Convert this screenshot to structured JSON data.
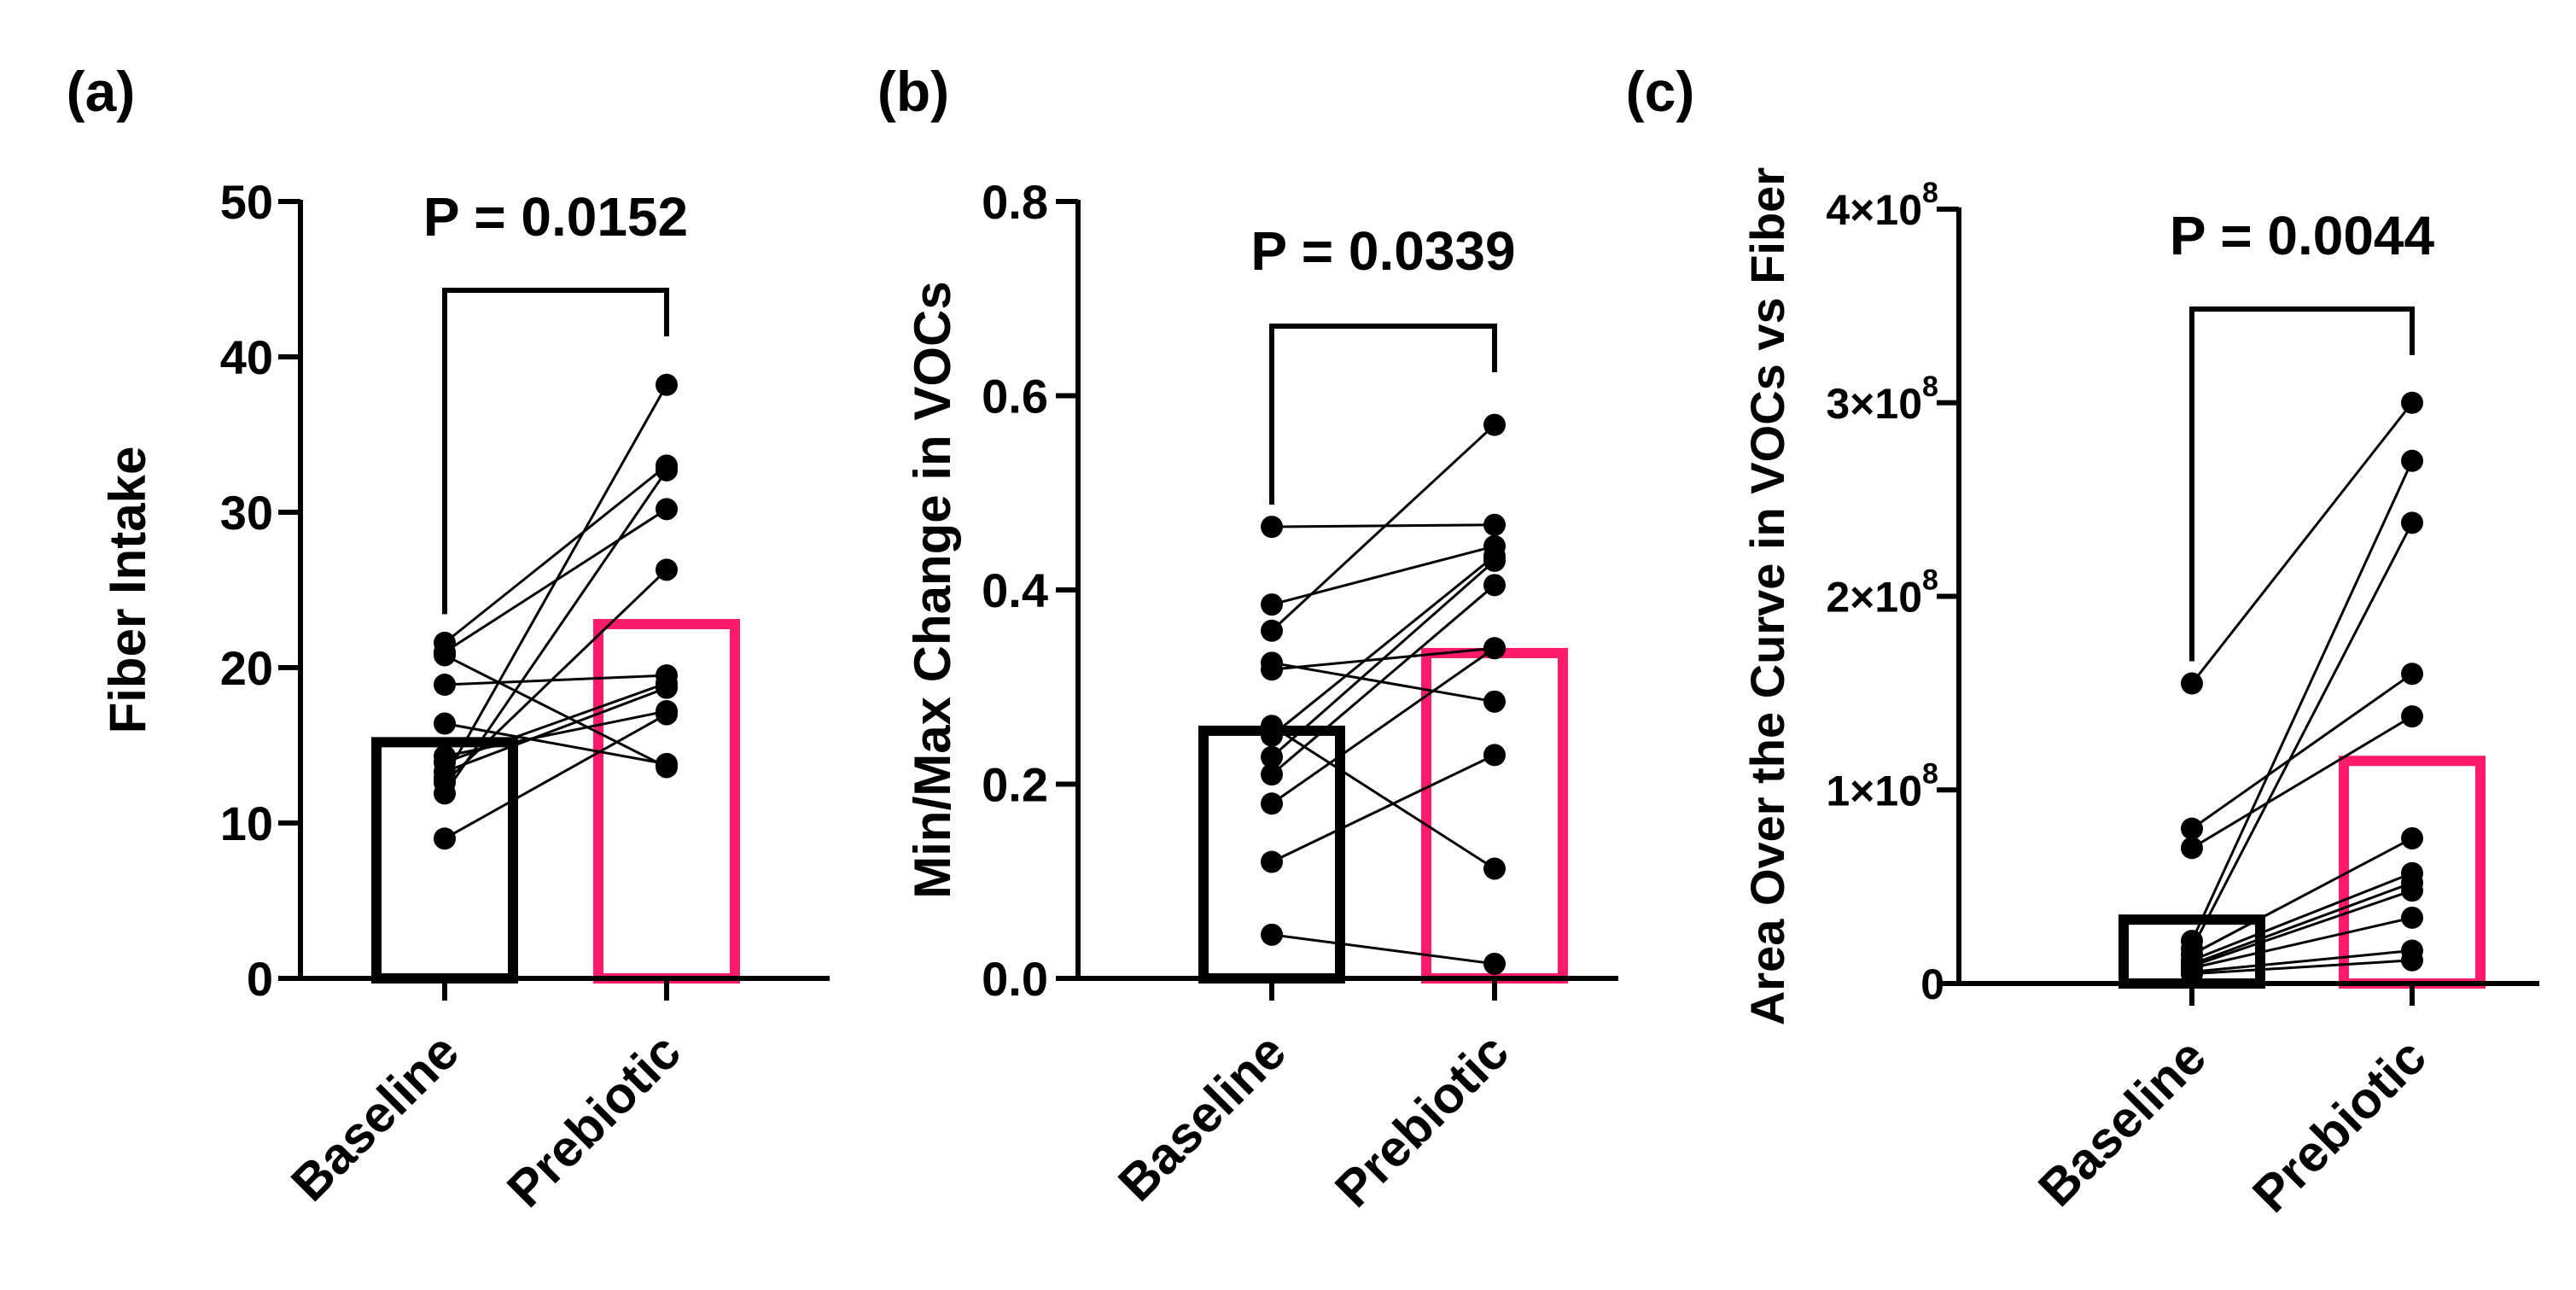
{
  "colors": {
    "baseline": "#000000",
    "prebiotic": "#ff1a6c",
    "ink": "#000000",
    "background": "#ffffff"
  },
  "chart_data": [
    {
      "panel_label": "(a)",
      "type": "bar",
      "categories": [
        "Baseline",
        "Prebiotic"
      ],
      "ylabel": "Fiber Intake",
      "ylim": [
        0,
        50
      ],
      "yticks": [
        0,
        10,
        20,
        30,
        40,
        50
      ],
      "ytick_labels": [
        "0",
        "10",
        "20",
        "30",
        "40",
        "50"
      ],
      "bar_values": [
        15.2,
        22.8
      ],
      "p_label": "P = 0.0152",
      "pairs": [
        [
          21.6,
          33.0
        ],
        [
          21.0,
          30.2
        ],
        [
          20.8,
          13.6
        ],
        [
          18.9,
          19.5
        ],
        [
          16.4,
          13.8
        ],
        [
          14.3,
          17.2
        ],
        [
          13.9,
          19.0
        ],
        [
          13.3,
          18.7
        ],
        [
          12.9,
          38.2
        ],
        [
          12.6,
          26.3
        ],
        [
          11.9,
          32.7
        ],
        [
          9.0,
          17.0
        ]
      ]
    },
    {
      "panel_label": "(b)",
      "type": "bar",
      "categories": [
        "Baseline",
        "Prebiotic"
      ],
      "ylabel": "Min/Max Change in VOCs",
      "ylim": [
        0,
        0.8
      ],
      "yticks": [
        0,
        0.2,
        0.4,
        0.6,
        0.8
      ],
      "ytick_labels": [
        "0.0",
        "0.2",
        "0.4",
        "0.6",
        "0.8"
      ],
      "bar_values": [
        0.255,
        0.335
      ],
      "p_label": "P = 0.0339",
      "pairs": [
        [
          0.465,
          0.467
        ],
        [
          0.385,
          0.445
        ],
        [
          0.358,
          0.57
        ],
        [
          0.325,
          0.285
        ],
        [
          0.318,
          0.34
        ],
        [
          0.25,
          0.435
        ],
        [
          0.228,
          0.43
        ],
        [
          0.21,
          0.405
        ],
        [
          0.18,
          0.34
        ],
        [
          0.12,
          0.23
        ],
        [
          0.045,
          0.015
        ],
        [
          0.26,
          0.113
        ]
      ]
    },
    {
      "panel_label": "(c)",
      "type": "bar",
      "categories": [
        "Baseline",
        "Prebiotic"
      ],
      "ylabel": "Area Over the Curve in VOCs vs Fiber",
      "ylim": [
        0,
        400000000
      ],
      "yticks": [
        0,
        100000000,
        200000000,
        300000000,
        400000000
      ],
      "ytick_labels": [
        "0",
        "1×10",
        "2×10",
        "3×10",
        "4×10"
      ],
      "ytick_exponents": [
        "",
        "8",
        "8",
        "8",
        "8"
      ],
      "bar_values": [
        33000000,
        115000000
      ],
      "p_label": "P = 0.0044",
      "pairs": [
        [
          155000000,
          300000000
        ],
        [
          80000000,
          160000000
        ],
        [
          70000000,
          138000000
        ],
        [
          22000000,
          270000000
        ],
        [
          18000000,
          238000000
        ],
        [
          15000000,
          75000000
        ],
        [
          12000000,
          57000000
        ],
        [
          10000000,
          52000000
        ],
        [
          9000000,
          48000000
        ],
        [
          8000000,
          34000000
        ],
        [
          6000000,
          17000000
        ],
        [
          5000000,
          12000000
        ]
      ]
    }
  ]
}
